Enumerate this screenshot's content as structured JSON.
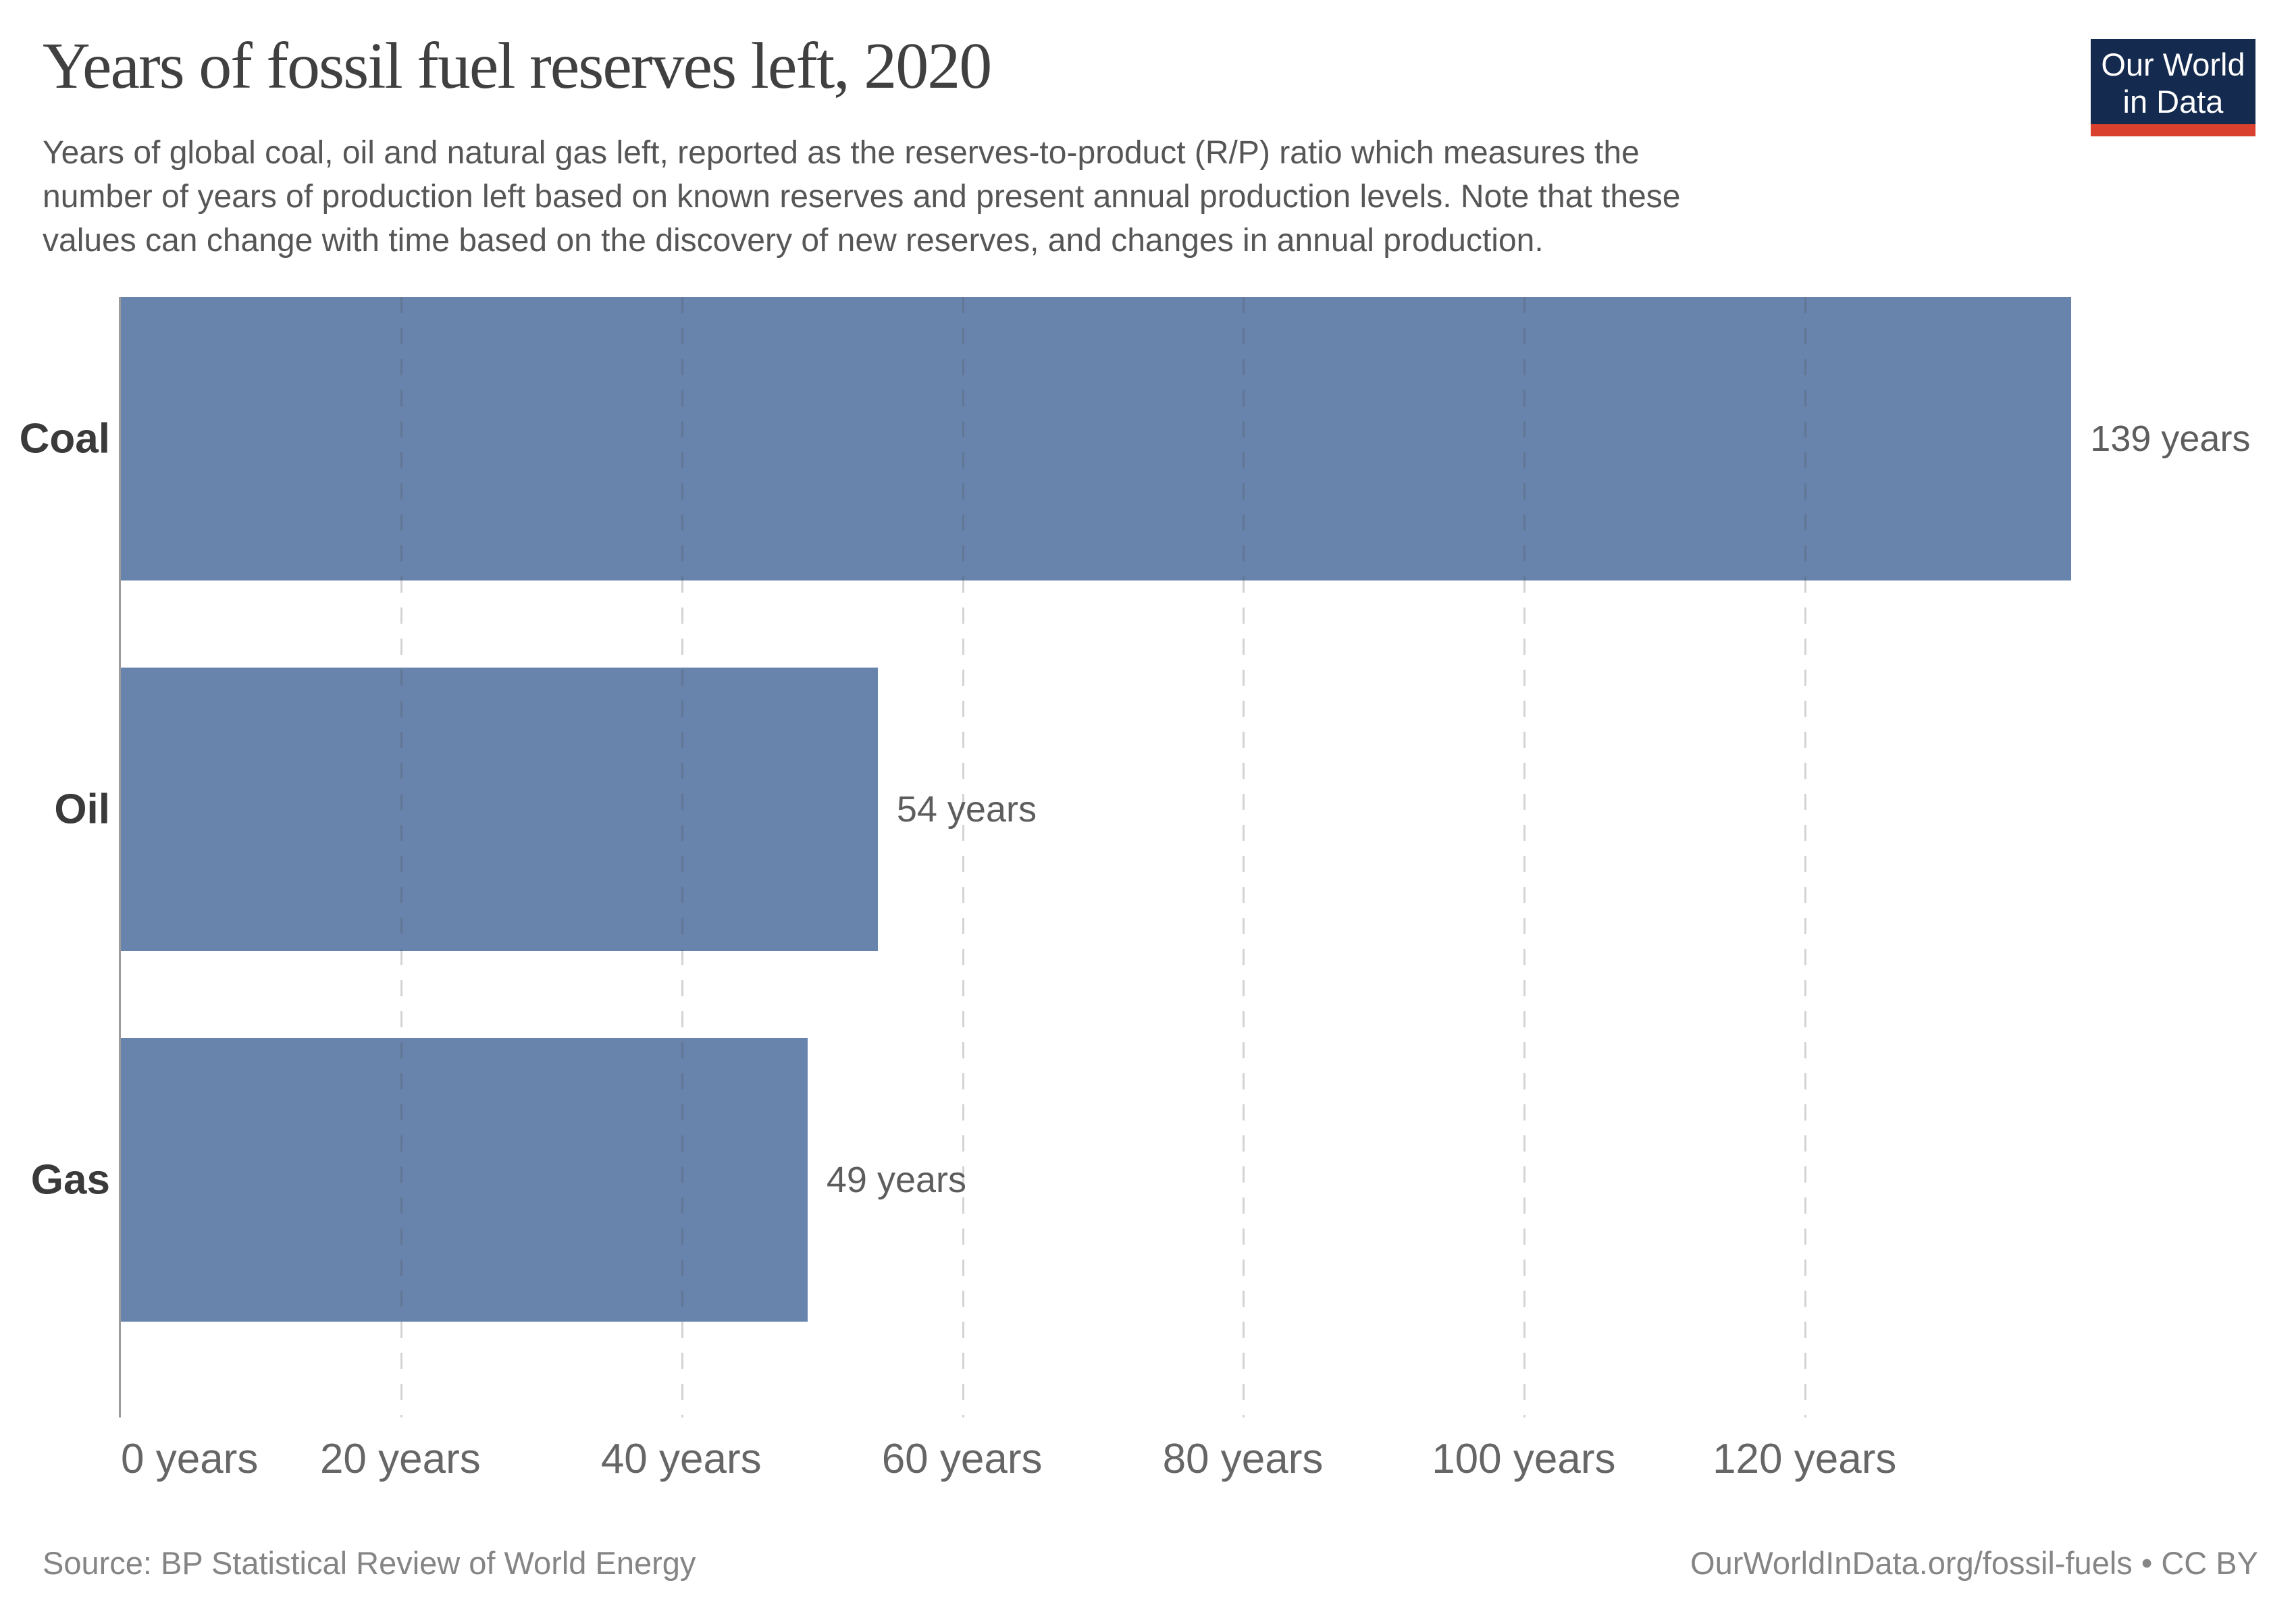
{
  "header": {
    "title": "Years of fossil fuel reserves left, 2020",
    "subtitle_lines": [
      "Years of global coal, oil and natural gas left, reported as the reserves-to-product (R/P) ratio which measures the",
      "number of years of production left based on known reserves and present annual production levels. Note that these",
      "values can change with time based on the discovery of new reserves, and changes in annual production."
    ]
  },
  "logo": {
    "line1": "Our World",
    "line2": "in Data",
    "background_color": "#142a4e",
    "bar_color": "#d9402e"
  },
  "chart_data": {
    "type": "bar",
    "orientation": "horizontal",
    "title": "Years of fossil fuel reserves left, 2020",
    "categories": [
      "Coal",
      "Oil",
      "Gas"
    ],
    "values": [
      139,
      54,
      49
    ],
    "value_labels": [
      "139 years",
      "54 years",
      "49 years"
    ],
    "unit": "years",
    "x_ticks": [
      0,
      20,
      40,
      60,
      80,
      100,
      120
    ],
    "x_tick_labels": [
      "0 years",
      "20 years",
      "40 years",
      "60 years",
      "80 years",
      "100 years",
      "120 years"
    ],
    "xlim": [
      0,
      155
    ],
    "bar_color": "#6883ac",
    "grid": "vertical dashed gridlines, drawn over bars",
    "legend": "none"
  },
  "footer": {
    "source": "Source: BP Statistical Review of World Energy",
    "attribution": "OurWorldInData.org/fossil-fuels • CC BY"
  }
}
